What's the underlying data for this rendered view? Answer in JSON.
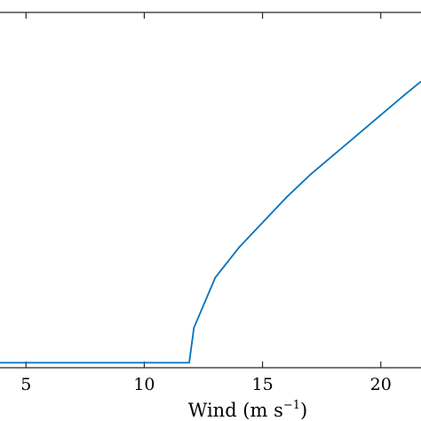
{
  "chart_data": {
    "type": "line",
    "title": "",
    "xlabel": {
      "base": "Wind (m s",
      "exponent": "−1",
      "close": ")"
    },
    "ylabel": "",
    "xlim": [
      3.9,
      21.7
    ],
    "ylim": [
      -0.1,
      7.0
    ],
    "x_ticks": [
      5,
      10,
      15,
      20
    ],
    "x_tick_labels": [
      "5",
      "10",
      "15",
      "20"
    ],
    "grid": false,
    "legend": "none",
    "series": [
      {
        "color": "#0072bd",
        "x": [
          3.9,
          11.9,
          12.1,
          13.0,
          14.0,
          15.0,
          16.0,
          17.0,
          18.0,
          19.0,
          20.0,
          21.0,
          21.7
        ],
        "y": [
          0.0,
          0.0,
          0.7,
          1.7,
          2.3,
          2.8,
          3.3,
          3.75,
          4.15,
          4.55,
          4.95,
          5.35,
          5.62
        ]
      }
    ]
  }
}
